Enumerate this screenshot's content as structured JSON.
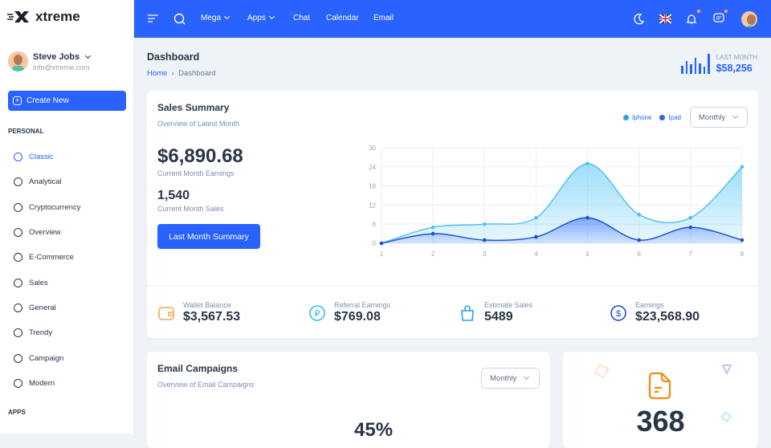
{
  "brand": {
    "name": "xtreme"
  },
  "user": {
    "name": "Steve Jobs",
    "email": "info@xtreme.com"
  },
  "sidebar": {
    "create_label": "Create New",
    "section_personal": "PERSONAL",
    "section_apps": "APPS",
    "items": [
      {
        "label": "Classic",
        "icon": "atom-icon",
        "active": true
      },
      {
        "label": "Analytical",
        "icon": "cube-icon"
      },
      {
        "label": "Cryptocurrency",
        "icon": "currency-dollar-icon"
      },
      {
        "label": "Overview",
        "icon": "globe-icon"
      },
      {
        "label": "E-Commerce",
        "icon": "cart-icon"
      },
      {
        "label": "Sales",
        "icon": "sales-icon"
      },
      {
        "label": "General",
        "icon": "screen-icon"
      },
      {
        "label": "Trendy",
        "icon": "ban-icon"
      },
      {
        "label": "Campaign",
        "icon": "building-icon"
      },
      {
        "label": "Modern",
        "icon": "basketball-icon"
      }
    ]
  },
  "topbar": {
    "mega": "Mega",
    "apps": "Apps",
    "chat": "Chat",
    "calendar": "Calendar",
    "email": "Email"
  },
  "page": {
    "title": "Dashboard",
    "crumb_home": "Home",
    "crumb_current": "Dashboard",
    "last_month_label": "LAST MONTH",
    "last_month_value": "$58,256"
  },
  "sales": {
    "title": "Sales Summary",
    "subtitle": "Overview of Latest Month",
    "select": "Monthly",
    "earnings": "$6,890.68",
    "earnings_label": "Current Month Earnings",
    "sales": "1,540",
    "sales_label": "Current Month Sales",
    "button": "Last Month Summary"
  },
  "stats": [
    {
      "label": "Wallet Balance",
      "value": "$3,567.53",
      "color": "#f8a756"
    },
    {
      "label": "Referral Earnings",
      "value": "$769.08",
      "color": "#39b8f0"
    },
    {
      "label": "Estimate Sales",
      "value": "5489",
      "color": "#2a9df4"
    },
    {
      "label": "Earnings",
      "value": "$23,568.90",
      "color": "#1e4fcf"
    }
  ],
  "email": {
    "title": "Email Campaigns",
    "subtitle": "Overview of Email Campaigns",
    "select": "Monthly",
    "percent": "45%"
  },
  "docs": {
    "count": "368"
  },
  "chart_data": {
    "type": "area",
    "x": [
      1,
      2,
      3,
      4,
      5,
      6,
      7,
      8
    ],
    "ylim": [
      0,
      30
    ],
    "yticks": [
      0,
      6,
      12,
      18,
      24,
      30
    ],
    "grid": true,
    "legend": "top-right",
    "series": [
      {
        "name": "Iphone",
        "values": [
          0,
          5,
          6,
          8,
          25,
          9,
          8,
          24
        ],
        "color": "#4fc3f7"
      },
      {
        "name": "Ipad",
        "values": [
          0,
          3,
          1,
          2,
          8,
          1,
          5,
          1
        ],
        "color": "#2962ff"
      }
    ]
  }
}
